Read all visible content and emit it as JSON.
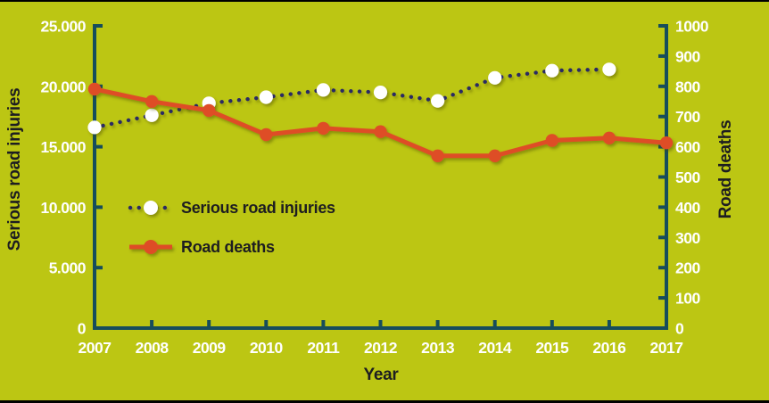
{
  "colors": {
    "background": "#bcc613",
    "frame_bar": "#000000",
    "axis": "#164d5b",
    "tick_label_text": "#ffffff",
    "dark_text": "#1d1d21",
    "injuries_line": "#2c2c63",
    "injuries_marker": "#ffffff",
    "deaths_line": "#de4e25",
    "marker_shadow": "#4a4c06"
  },
  "chart_data": {
    "type": "line",
    "x": [
      2007,
      2008,
      2009,
      2010,
      2011,
      2012,
      2013,
      2014,
      2015,
      2016,
      2017
    ],
    "x_labels": [
      "2007",
      "2008",
      "2009",
      "2010",
      "2011",
      "2012",
      "2013",
      "2014",
      "2015",
      "2016",
      "2017"
    ],
    "xlabel": "Year",
    "grid": false,
    "left_axis": {
      "label": "Serious road injuries",
      "range": [
        0,
        25000
      ],
      "ticks": [
        0,
        5000,
        10000,
        15000,
        20000,
        25000
      ],
      "tick_labels": [
        "0",
        "5.000",
        "10.000",
        "15.000",
        "20.000",
        "25.000"
      ]
    },
    "right_axis": {
      "label": "Road deaths",
      "range": [
        0,
        1000
      ],
      "ticks": [
        0,
        100,
        200,
        300,
        400,
        500,
        600,
        700,
        800,
        900,
        1000
      ],
      "tick_labels": [
        "0",
        "100",
        "200",
        "300",
        "400",
        "500",
        "600",
        "700",
        "800",
        "900",
        "1000"
      ]
    },
    "series": [
      {
        "name": "Serious road injuries",
        "axis": "left",
        "style": "dotted",
        "line_color": "#2c2c63",
        "marker_color": "#ffffff",
        "x": [
          2007,
          2008,
          2009,
          2010,
          2011,
          2012,
          2013,
          2014,
          2015,
          2016
        ],
        "values": [
          16600,
          17600,
          18600,
          19100,
          19700,
          19500,
          18800,
          20700,
          21300,
          21400
        ]
      },
      {
        "name": "Road deaths",
        "axis": "right",
        "style": "solid",
        "line_color": "#de4e25",
        "marker_color": "#de4e25",
        "x": [
          2007,
          2008,
          2009,
          2010,
          2011,
          2012,
          2013,
          2014,
          2015,
          2016,
          2017
        ],
        "values": [
          791,
          750,
          720,
          640,
          661,
          650,
          570,
          570,
          621,
          629,
          613
        ]
      }
    ],
    "legend": {
      "position": "inside-left-middle",
      "items": [
        "Serious road injuries",
        "Road deaths"
      ]
    }
  }
}
